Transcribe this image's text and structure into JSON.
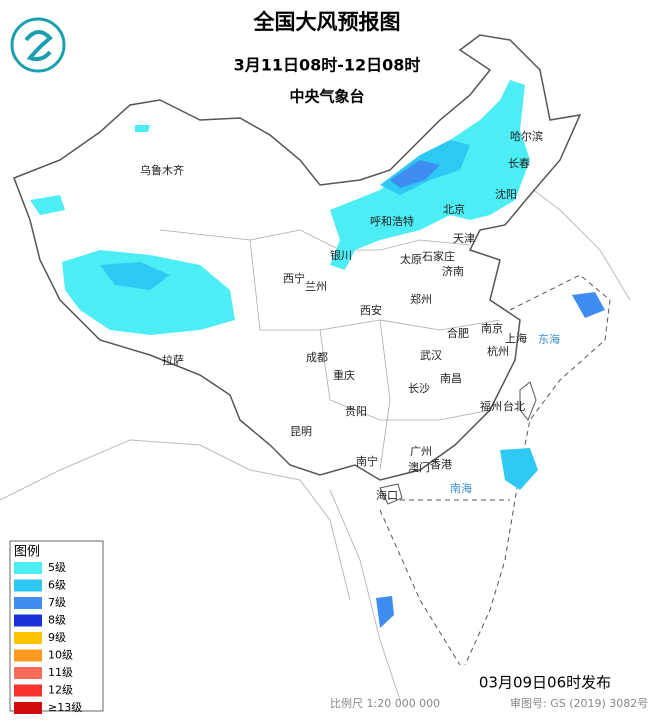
{
  "header": {
    "title": "全国大风预报图",
    "period": "3月11日08时-12日08时",
    "issuer": "中央气象台"
  },
  "legend": {
    "title": "图例",
    "items": [
      {
        "label": "5级",
        "color": "#4dedf5"
      },
      {
        "label": "6级",
        "color": "#2ec8f5"
      },
      {
        "label": "7级",
        "color": "#3d8ef0"
      },
      {
        "label": "8级",
        "color": "#1a2fd6"
      },
      {
        "label": "9级",
        "color": "#fcc400"
      },
      {
        "label": "10级",
        "color": "#fb9a1e"
      },
      {
        "label": "11级",
        "color": "#fc6a5a"
      },
      {
        "label": "12级",
        "color": "#f6332f"
      },
      {
        "label": "≥13级",
        "color": "#d20c0c"
      }
    ]
  },
  "cities": [
    "乌鲁木齐",
    "哈尔滨",
    "长春",
    "沈阳",
    "呼和浩特",
    "北京",
    "天津",
    "银川",
    "太原",
    "石家庄",
    "济南",
    "西宁",
    "兰州",
    "郑州",
    "西安",
    "合肥",
    "南京",
    "上海",
    "杭州",
    "成都",
    "武汉",
    "重庆",
    "长沙",
    "南昌",
    "拉萨",
    "福州",
    "台北",
    "贵阳",
    "昆明",
    "广州",
    "香港",
    "澳门",
    "南宁",
    "海口"
  ],
  "seas": [
    "东海",
    "南海"
  ],
  "footer": {
    "published": "03月09日06时发布",
    "scale": "比例尺 1:20 000 000",
    "approval": "审图号: GS (2019) 3082号"
  }
}
